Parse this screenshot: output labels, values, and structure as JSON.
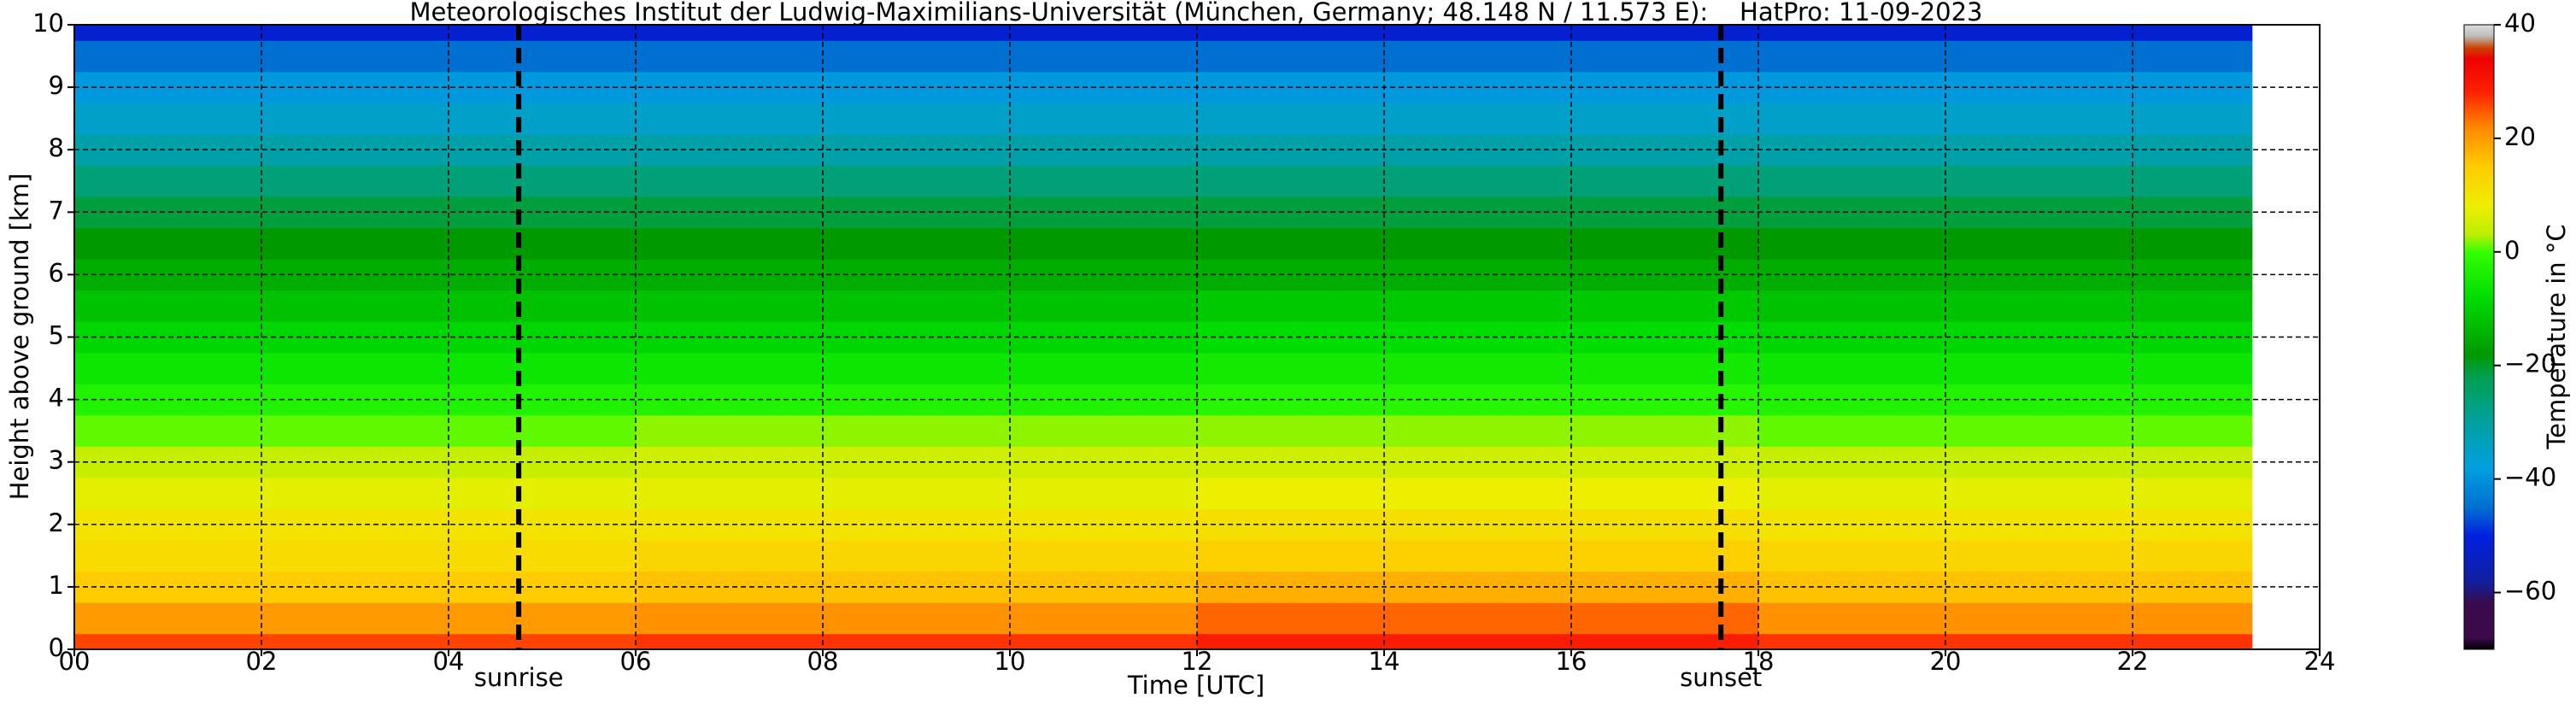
{
  "chart_data": {
    "type": "heatmap",
    "title": "Meteorologisches Institut der Ludwig-Maximilians-Universität (München, Germany; 48.148 N / 11.573 E):    HatPro: 11-09-2023",
    "x_label": "Time [UTC]",
    "y_label": "Height above ground [km]",
    "colorbar_label": "Temperature in °C",
    "time_edges": [
      0,
      6,
      12,
      18,
      23.3
    ],
    "heights": [
      0,
      0.5,
      1,
      1.5,
      2,
      2.5,
      3,
      3.5,
      4,
      4.5,
      5,
      5.5,
      6,
      6.5,
      7,
      7.5,
      8,
      8.5,
      9,
      9.5,
      10
    ],
    "values": [
      [
        26,
        27,
        29,
        27
      ],
      [
        20,
        21,
        24,
        21
      ],
      [
        15,
        16,
        18,
        16
      ],
      [
        12,
        13,
        14,
        13
      ],
      [
        10,
        10,
        11,
        10
      ],
      [
        7,
        7,
        8,
        7
      ],
      [
        4,
        5,
        5,
        4
      ],
      [
        1,
        2,
        2,
        1
      ],
      [
        -3,
        -3,
        -2,
        -3
      ],
      [
        -6,
        -6,
        -5,
        -6
      ],
      [
        -9,
        -9,
        -8,
        -9
      ],
      [
        -12,
        -12,
        -11,
        -12
      ],
      [
        -15,
        -15,
        -15,
        -15
      ],
      [
        -18,
        -18,
        -18,
        -18
      ],
      [
        -21,
        -21,
        -21,
        -21
      ],
      [
        -26,
        -26,
        -26,
        -26
      ],
      [
        -31,
        -31,
        -31,
        -31
      ],
      [
        -35,
        -35,
        -35,
        -35
      ],
      [
        -39,
        -39,
        -39,
        -39
      ],
      [
        -45,
        -45,
        -45,
        -45
      ],
      [
        -52,
        -52,
        -52,
        -52
      ]
    ],
    "xlim": [
      0,
      24
    ],
    "xticks": [
      {
        "value": 0,
        "label": "00"
      },
      {
        "value": 2,
        "label": "02"
      },
      {
        "value": 4,
        "label": "04"
      },
      {
        "value": 6,
        "label": "06"
      },
      {
        "value": 8,
        "label": "08"
      },
      10,
      12,
      14,
      16,
      18,
      20,
      22,
      24
    ],
    "ylim": [
      0,
      10
    ],
    "yticks": [
      0,
      1,
      2,
      3,
      4,
      5,
      6,
      7,
      8,
      9,
      10
    ],
    "clim": [
      -70,
      40
    ],
    "cticks": [
      {
        "value": -60,
        "label": "−60"
      },
      {
        "value": -40,
        "label": "−40"
      },
      {
        "value": -20,
        "label": "−20"
      },
      0,
      20,
      40
    ],
    "colormap": [
      [
        -70,
        "#000000"
      ],
      [
        -68,
        "#3a0a4a"
      ],
      [
        -62,
        "#3a0a4a"
      ],
      [
        -58,
        "#1020a0"
      ],
      [
        -50,
        "#0020e0"
      ],
      [
        -45,
        "#0070d0"
      ],
      [
        -38,
        "#00a0e0"
      ],
      [
        -30,
        "#00a0a0"
      ],
      [
        -22,
        "#00a050"
      ],
      [
        -18,
        "#009900"
      ],
      [
        -8,
        "#00dd00"
      ],
      [
        0,
        "#33ff00"
      ],
      [
        3,
        "#bbee00"
      ],
      [
        8,
        "#eeee00"
      ],
      [
        15,
        "#ffcc00"
      ],
      [
        22,
        "#ff8800"
      ],
      [
        28,
        "#ff2200"
      ],
      [
        34,
        "#ee0000"
      ],
      [
        36,
        "#cc4400"
      ],
      [
        38,
        "#bbbbbb"
      ],
      [
        40,
        "#dddddd"
      ]
    ],
    "annotations": [
      {
        "text": "sunrise",
        "x": 4.75
      },
      {
        "text": "sunset",
        "x": 17.6
      }
    ],
    "grid": true
  }
}
